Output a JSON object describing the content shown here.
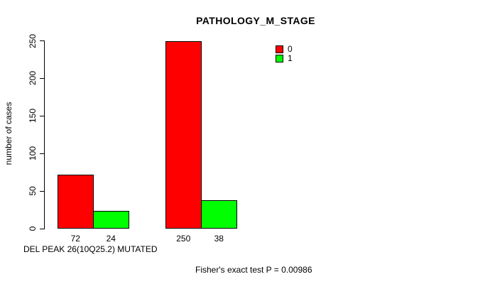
{
  "chart_data": {
    "type": "bar",
    "title": "PATHOLOGY_M_STAGE",
    "ylabel": "number of cases",
    "xlabel": "DEL PEAK 26(10Q25.2) MUTATED",
    "annotation": "Fisher's exact test P = 0.00986",
    "ylim": [
      0,
      250
    ],
    "yticks": [
      0,
      50,
      100,
      150,
      200,
      250
    ],
    "grid": false,
    "legend_position": "top-right-inside",
    "categories": [
      "group-1",
      "group-2"
    ],
    "series": [
      {
        "name": "0",
        "color": "#ff0000",
        "values": [
          72,
          250
        ]
      },
      {
        "name": "1",
        "color": "#00ff00",
        "values": [
          24,
          38
        ]
      }
    ],
    "bar_value_labels": [
      [
        "72",
        "24"
      ],
      [
        "250",
        "38"
      ]
    ]
  }
}
